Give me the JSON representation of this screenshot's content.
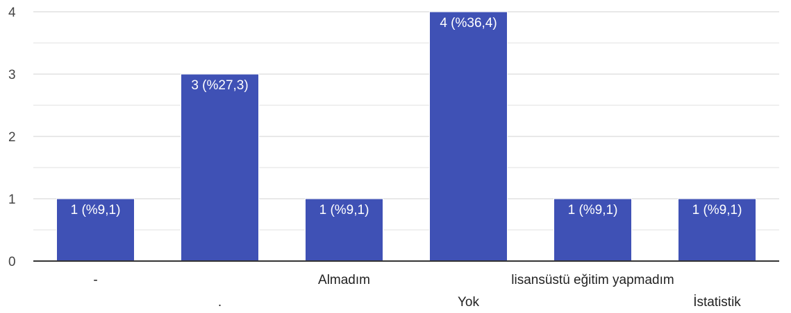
{
  "chart_data": {
    "type": "bar",
    "categories": [
      "-",
      ".",
      "Almadım",
      "Yok",
      "lisansüstü eğitim yapmadım",
      "İstatistik"
    ],
    "values": [
      1,
      3,
      1,
      4,
      1,
      1
    ],
    "data_labels": [
      "1 (%9,1)",
      "3 (%27,3)",
      "1 (%9,1)",
      "4 (%36,4)",
      "1 (%9,1)",
      "1 (%9,1)"
    ],
    "y_ticks": [
      "0",
      "1",
      "2",
      "3",
      "4"
    ],
    "ylim": [
      0,
      4
    ],
    "grid": true,
    "bar_color": "#3f51b5",
    "grid_color": "#e0e0e0",
    "axis_color": "#333333"
  }
}
